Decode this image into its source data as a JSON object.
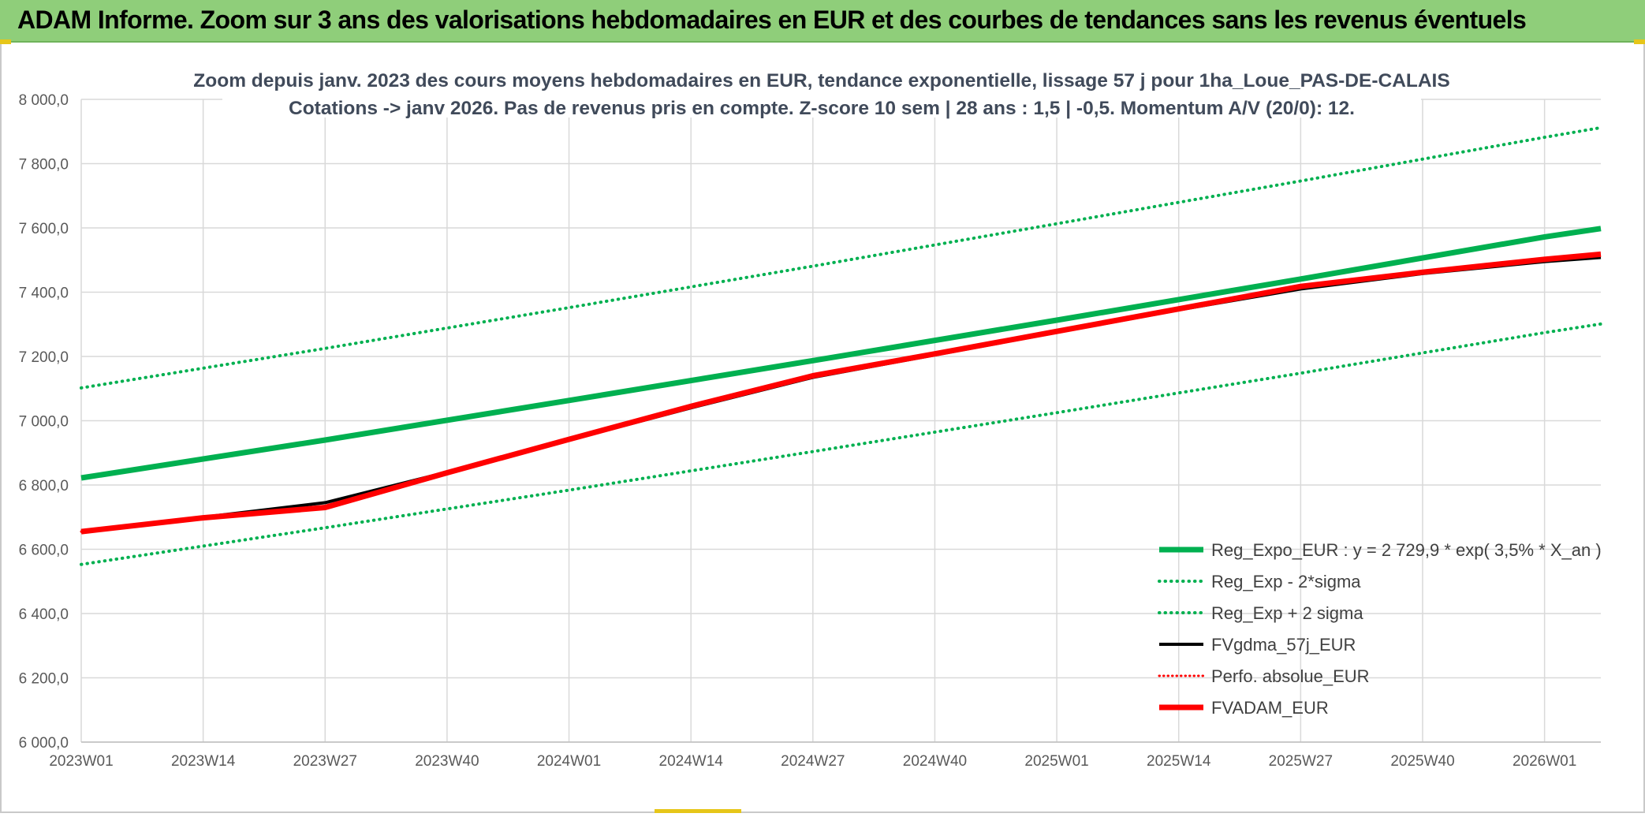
{
  "banner": {
    "title": "ADAM Informe. Zoom sur 3 ans des valorisations hebdomadaires en EUR et des courbes de tendances sans les revenus éventuels"
  },
  "chart_data": {
    "type": "line",
    "title_line1": "Zoom depuis janv. 2023 des cours moyens hebdomadaires en EUR, tendance exponentielle, lissage 57 j pour 1ha_Loue_PAS-DE-CALAIS",
    "title_line2": "Cotations -> janv 2026. Pas de revenus pris en compte. Z-score 10 sem | 28 ans : 1,5 | -0,5. Momentum A/V (20/0): 12.",
    "ylim": [
      6000,
      8000
    ],
    "yticks": [
      6000,
      6200,
      6400,
      6600,
      6800,
      7000,
      7200,
      7400,
      7600,
      7800,
      8000
    ],
    "ytick_labels": [
      "6 000,0",
      "6 200,0",
      "6 400,0",
      "6 600,0",
      "6 800,0",
      "7 000,0",
      "7 200,0",
      "7 400,0",
      "7 600,0",
      "7 800,0",
      "8 000,0"
    ],
    "xlim": [
      0,
      162
    ],
    "xticks": [
      0,
      13,
      26,
      39,
      52,
      65,
      78,
      91,
      104,
      117,
      130,
      143,
      156
    ],
    "xtick_labels": [
      "2023W01",
      "2023W14",
      "2023W27",
      "2023W40",
      "2024W01",
      "2024W14",
      "2024W27",
      "2024W40",
      "2025W01",
      "2025W14",
      "2025W27",
      "2025W40",
      "2026W01"
    ],
    "grid": true,
    "legend_position": "bottom-right",
    "series": [
      {
        "name": "Reg_Expo_EUR : y = 2 729,9 * exp( 3,5% *  X_an )",
        "color": "#00b050",
        "style": "solid",
        "width": 7,
        "x": [
          0,
          26,
          52,
          78,
          104,
          130,
          156,
          162
        ],
        "values": [
          6822,
          6940,
          7063,
          7187,
          7313,
          7441,
          7572,
          7598
        ]
      },
      {
        "name": "Reg_Exp - 2*sigma",
        "color": "#00b050",
        "style": "dotted",
        "width": 4,
        "x": [
          0,
          26,
          52,
          78,
          104,
          130,
          156,
          162
        ],
        "values": [
          6553,
          6667,
          6784,
          6904,
          7025,
          7148,
          7274,
          7301
        ]
      },
      {
        "name": "Reg_Exp + 2 sigma",
        "color": "#00b050",
        "style": "dotted",
        "width": 4,
        "x": [
          0,
          26,
          52,
          78,
          104,
          130,
          156,
          162
        ],
        "values": [
          7102,
          7225,
          7352,
          7481,
          7613,
          7746,
          7882,
          7912
        ]
      },
      {
        "name": "FVgdma_57j_EUR",
        "color": "#000000",
        "style": "solid",
        "width": 4,
        "x": [
          0,
          13,
          26,
          39,
          52,
          65,
          78,
          91,
          104,
          117,
          130,
          143,
          156,
          162
        ],
        "values": [
          6655,
          6700,
          6745,
          6840,
          6940,
          7040,
          7135,
          7205,
          7275,
          7345,
          7410,
          7458,
          7495,
          7508
        ]
      },
      {
        "name": "Perfo. absolue_EUR",
        "color": "#ff0000",
        "style": "dotted",
        "width": 3,
        "x": [
          0,
          13,
          26,
          39,
          52,
          65,
          78,
          91,
          104,
          117,
          130,
          143,
          156,
          162
        ],
        "values": [
          6655,
          6698,
          6730,
          6838,
          6942,
          7045,
          7140,
          7208,
          7278,
          7348,
          7418,
          7462,
          7502,
          7518
        ]
      },
      {
        "name": "FVADAM_EUR",
        "color": "#ff0000",
        "style": "solid",
        "width": 7,
        "x": [
          0,
          13,
          26,
          39,
          52,
          65,
          78,
          91,
          104,
          117,
          130,
          143,
          156,
          162
        ],
        "values": [
          6655,
          6698,
          6730,
          6838,
          6942,
          7045,
          7140,
          7208,
          7278,
          7348,
          7418,
          7462,
          7502,
          7518
        ]
      }
    ]
  }
}
